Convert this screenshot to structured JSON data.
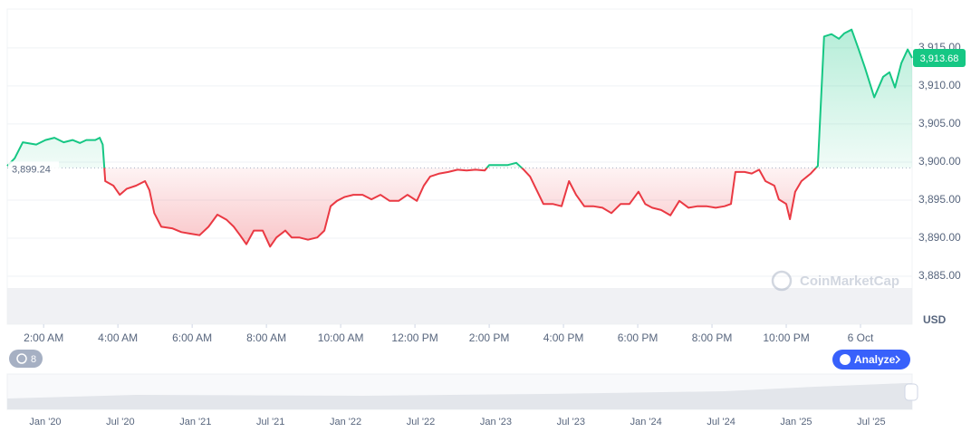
{
  "chart_data": {
    "type": "line",
    "x": [
      1.02,
      1.22,
      1.44,
      1.8,
      2.05,
      2.29,
      2.54,
      2.78,
      2.98,
      3.15,
      3.39,
      3.51,
      3.59,
      3.66,
      3.88,
      4.05,
      4.24,
      4.49,
      4.73,
      4.85,
      4.98,
      5.17,
      5.46,
      5.71,
      5.95,
      6.2,
      6.44,
      6.68,
      6.93,
      7.12,
      7.29,
      7.46,
      7.66,
      7.9,
      8.1,
      8.27,
      8.51,
      8.68,
      8.88,
      9.12,
      9.37,
      9.56,
      9.73,
      9.9,
      10.1,
      10.34,
      10.59,
      10.83,
      11.07,
      11.32,
      11.56,
      11.8,
      12.05,
      12.24,
      12.41,
      12.66,
      12.9,
      13.15,
      13.39,
      13.63,
      13.88,
      14.0,
      14.24,
      14.49,
      14.73,
      14.93,
      15.1,
      15.34,
      15.46,
      15.71,
      15.95,
      16.15,
      16.34,
      16.56,
      16.8,
      17.05,
      17.29,
      17.54,
      17.78,
      18.02,
      18.2,
      18.39,
      18.63,
      18.88,
      19.12,
      19.37,
      19.61,
      19.85,
      20.1,
      20.34,
      20.51,
      20.63,
      20.88,
      21.07,
      21.27,
      21.44,
      21.68,
      21.8,
      22.0,
      22.1,
      22.24,
      22.41,
      22.66,
      22.85,
      23.02,
      23.22,
      23.42,
      23.56,
      23.76,
      23.95,
      24.12,
      24.37,
      24.61,
      24.78,
      24.93,
      25.1,
      25.27,
      25.39
    ],
    "values": [
      3899.5,
      3900.5,
      3902.6,
      3902.3,
      3902.9,
      3903.2,
      3902.6,
      3902.9,
      3902.5,
      3902.9,
      3902.9,
      3903.2,
      3902.3,
      3897.5,
      3896.9,
      3895.7,
      3896.5,
      3896.9,
      3897.5,
      3896.3,
      3893.3,
      3891.5,
      3891.3,
      3890.8,
      3890.6,
      3890.4,
      3891.5,
      3893.1,
      3892.4,
      3891.5,
      3890.4,
      3889.2,
      3891.0,
      3891.0,
      3888.9,
      3890.1,
      3891.0,
      3890.1,
      3890.1,
      3889.8,
      3890.1,
      3891.0,
      3894.2,
      3894.9,
      3895.4,
      3895.7,
      3895.7,
      3895.1,
      3895.7,
      3894.9,
      3894.9,
      3895.7,
      3894.9,
      3896.9,
      3898.1,
      3898.5,
      3898.7,
      3899.0,
      3898.9,
      3899.0,
      3898.9,
      3899.6,
      3899.6,
      3899.6,
      3899.9,
      3899.0,
      3898.1,
      3895.7,
      3894.5,
      3894.5,
      3894.2,
      3897.5,
      3895.7,
      3894.2,
      3894.2,
      3894.0,
      3893.3,
      3894.5,
      3894.5,
      3896.1,
      3894.5,
      3894.0,
      3893.7,
      3893.0,
      3894.9,
      3894.0,
      3894.2,
      3894.2,
      3894.0,
      3894.2,
      3894.5,
      3898.7,
      3898.7,
      3898.5,
      3899.0,
      3897.5,
      3896.9,
      3895.1,
      3894.5,
      3892.5,
      3896.1,
      3897.5,
      3898.5,
      3899.5,
      3916.5,
      3916.8,
      3916.2,
      3916.9,
      3917.4,
      3914.8,
      3912.4,
      3908.5,
      3911.2,
      3911.8,
      3909.8,
      3913.0,
      3914.8,
      3913.68
    ],
    "colors": {
      "above": "#16c784",
      "below": "#ea3943"
    },
    "baseline": {
      "value": 3899.24,
      "label": "3,899.24"
    },
    "last_price": {
      "value": 3913.68,
      "label": "3,913.68"
    },
    "xlim": [
      1.02,
      25.39
    ],
    "xticks": [
      {
        "value": 2,
        "label": "2:00 AM"
      },
      {
        "value": 4,
        "label": "4:00 AM"
      },
      {
        "value": 6,
        "label": "6:00 AM"
      },
      {
        "value": 8,
        "label": "8:00 AM"
      },
      {
        "value": 10,
        "label": "10:00 AM"
      },
      {
        "value": 12,
        "label": "12:00 PM"
      },
      {
        "value": 14,
        "label": "2:00 PM"
      },
      {
        "value": 16,
        "label": "4:00 PM"
      },
      {
        "value": 18,
        "label": "6:00 PM"
      },
      {
        "value": 20,
        "label": "8:00 PM"
      },
      {
        "value": 22,
        "label": "10:00 PM"
      },
      {
        "value": 24,
        "label": "6 Oct"
      }
    ],
    "ylim": [
      3878.7,
      3920.1
    ],
    "yticks": [
      {
        "value": 3885,
        "label": "3,885.00"
      },
      {
        "value": 3890,
        "label": "3,890.00"
      },
      {
        "value": 3895,
        "label": "3,895.00"
      },
      {
        "value": 3900,
        "label": "3,900.00"
      },
      {
        "value": 3905,
        "label": "3,905.00"
      },
      {
        "value": 3910,
        "label": "3,910.00"
      },
      {
        "value": 3915,
        "label": "3,915.00"
      }
    ],
    "grid": true,
    "y_unit": "USD"
  },
  "ui": {
    "watermark": "CoinMarketCap",
    "history_count": "8",
    "analyze": "Analyze",
    "navigator_labels": [
      "Jan '20",
      "Jul '20",
      "Jan '21",
      "Jul '21",
      "Jan '22",
      "Jul '22",
      "Jan '23",
      "Jul '23",
      "Jan '24",
      "Jul '24",
      "Jan '25",
      "Jul '25"
    ]
  }
}
